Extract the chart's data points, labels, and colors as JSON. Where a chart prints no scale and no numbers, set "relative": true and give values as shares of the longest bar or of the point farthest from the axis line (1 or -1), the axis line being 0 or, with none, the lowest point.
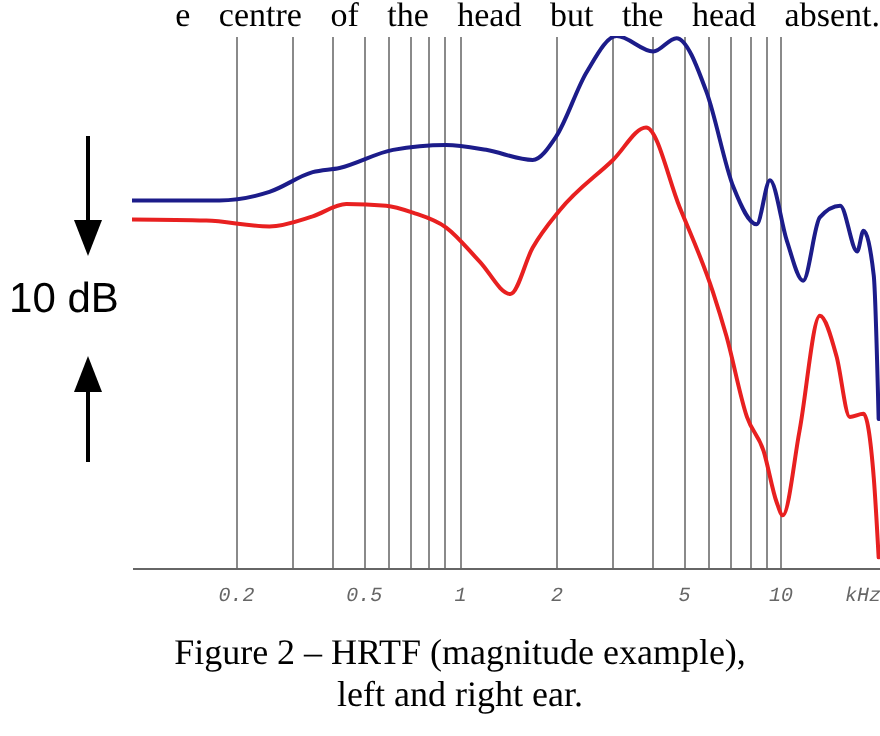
{
  "chart_data": {
    "type": "line",
    "title": "Figure 2 – HRTF (magnitude example), left and right ear.",
    "xlabel": "kHz",
    "relative": true,
    "log": "x",
    "grid": "x",
    "marker": "none",
    "line_style": "solid",
    "xlim": [
      0.095,
      20.5
    ],
    "xticks": [
      0.2,
      {
        "value": 0.3,
        "label": null
      },
      {
        "value": 0.4,
        "label": null
      },
      0.5,
      {
        "value": 0.6,
        "label": null
      },
      {
        "value": 0.7,
        "label": null
      },
      {
        "value": 0.8,
        "label": null
      },
      {
        "value": 0.9,
        "label": null
      },
      1,
      2,
      {
        "value": 3,
        "label": null
      },
      {
        "value": 4,
        "label": null
      },
      5,
      {
        "value": 6,
        "label": null
      },
      {
        "value": 7,
        "label": null
      },
      {
        "value": 8,
        "label": null
      },
      {
        "value": 9,
        "label": null
      },
      10
    ],
    "annotations": [
      "e centre of the head but the head absent.",
      "10 dB"
    ],
    "series": [
      {
        "color": "#1c1c8a",
        "x": [
          0.095,
          0.178,
          0.255,
          0.348,
          0.422,
          0.62,
          0.908,
          1.21,
          1.69,
          2.0,
          2.49,
          3.09,
          4.02,
          4.75,
          5.9,
          7.15,
          8.45,
          9.3,
          10.5,
          11.8,
          13.3,
          15.4,
          17.4,
          18.2,
          19.6,
          20.3
        ],
        "values": [
          0.691,
          0.691,
          0.707,
          0.744,
          0.752,
          0.786,
          0.795,
          0.786,
          0.767,
          0.811,
          0.932,
          1,
          0.971,
          0.996,
          0.894,
          0.716,
          0.646,
          0.729,
          0.615,
          0.54,
          0.659,
          0.681,
          0.595,
          0.634,
          0.55,
          0.28
        ]
      },
      {
        "color": "#e82020",
        "x": [
          0.095,
          0.162,
          0.255,
          0.348,
          0.443,
          0.59,
          0.715,
          0.908,
          1.155,
          1.44,
          1.69,
          2.05,
          3.01,
          3.82,
          4.86,
          6.17,
          6.8,
          7.88,
          8.88,
          9.75,
          10.2,
          11.5,
          13.3,
          15.0,
          16.5,
          18.2,
          19.6,
          20.3
        ],
        "values": [
          0.655,
          0.653,
          0.642,
          0.661,
          0.684,
          0.681,
          0.668,
          0.64,
          0.576,
          0.515,
          0.602,
          0.672,
          0.767,
          0.828,
          0.678,
          0.519,
          0.436,
          0.284,
          0.22,
          0.124,
          0.099,
          0.258,
          0.474,
          0.398,
          0.284,
          0.29,
          0.17,
          0.02
        ]
      }
    ]
  }
}
